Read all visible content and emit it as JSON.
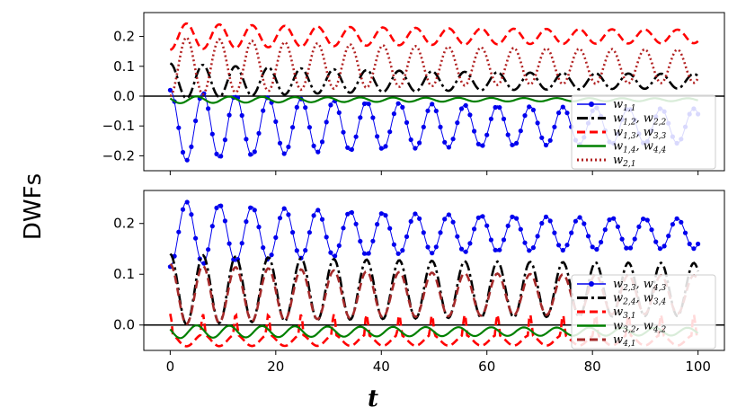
{
  "figure": {
    "ylabel": "DWFs",
    "xlabel": "t"
  },
  "chart_data": [
    {
      "type": "line",
      "panel": "top",
      "xlim": [
        -5,
        105
      ],
      "ylim": [
        -0.25,
        0.28
      ],
      "xticks": [
        0,
        20,
        40,
        60,
        80,
        100
      ],
      "xtick_labels": [
        "",
        "",
        "",
        "",
        "",
        ""
      ],
      "yticks": [
        -0.2,
        -0.1,
        0.0,
        0.1,
        0.2
      ],
      "ytick_labels": [
        "−0.2",
        "−0.1",
        "0.0",
        "0.1",
        "0.2"
      ],
      "hline": 0,
      "legend_position": "lower-right",
      "series": [
        {
          "name": "W1,1",
          "legend_label": "w",
          "legend_sub": "1,1",
          "color": "#0000ee",
          "style": "dot-marker",
          "model": {
            "offset": -0.1,
            "amp": 0.12,
            "amp_end": 0.05,
            "period": 6.2,
            "phase": 0
          }
        },
        {
          "name": "W1,2 W2,2",
          "legend_label": "w",
          "legend_sub": "1,2",
          "legend_label2": "w",
          "legend_sub2": "2,2",
          "color": "#000000",
          "style": "dashdot",
          "model": {
            "offset": 0.05,
            "amp": 0.06,
            "amp_end": 0.02,
            "period": 6.2,
            "phase": 0
          }
        },
        {
          "name": "W1,3 W3,3",
          "legend_label": "w",
          "legend_sub": "1,3",
          "legend_label2": "w",
          "legend_sub2": "3,3",
          "color": "#ff0000",
          "style": "dashed",
          "model": {
            "offset": 0.2,
            "amp": 0.045,
            "amp_end": 0.02,
            "period": 6.2,
            "phase": 3.14159
          }
        },
        {
          "name": "W1,4 W4,4",
          "legend_label": "w",
          "legend_sub": "1,4",
          "legend_label2": "w",
          "legend_sub2": "4,4",
          "color": "#008000",
          "style": "solid",
          "model": {
            "offset": -0.012,
            "amp": 0.012,
            "amp_end": 0.004,
            "period": 6.2,
            "phase": 1.2
          }
        },
        {
          "name": "W2,1",
          "legend_label": "w",
          "legend_sub": "2,1",
          "color": "#b22222",
          "style": "dotted",
          "model": {
            "offset": 0.1,
            "amp": 0.1,
            "amp_end": 0.05,
            "period": 6.2,
            "phase": 3.14159
          }
        }
      ]
    },
    {
      "type": "line",
      "panel": "bottom",
      "xlim": [
        -5,
        105
      ],
      "ylim": [
        -0.05,
        0.265
      ],
      "xticks": [
        0,
        20,
        40,
        60,
        80,
        100
      ],
      "xtick_labels": [
        "0",
        "20",
        "40",
        "60",
        "80",
        "100"
      ],
      "yticks": [
        0.0,
        0.1,
        0.2
      ],
      "ytick_labels": [
        "0.0",
        "0.1",
        "0.2"
      ],
      "hline": 0,
      "legend_position": "lower-right",
      "series": [
        {
          "name": "W2,3 W4,3",
          "legend_label": "w",
          "legend_sub": "2,3",
          "legend_label2": "w",
          "legend_sub2": "4,3",
          "color": "#0000ee",
          "style": "dot-marker",
          "model": {
            "offset": 0.18,
            "amp": 0.065,
            "amp_end": 0.025,
            "period": 6.2,
            "phase": 3.14159
          }
        },
        {
          "name": "W2,4 W3,4",
          "legend_label": "w",
          "legend_sub": "2,4",
          "legend_label2": "w",
          "legend_sub2": "3,4",
          "color": "#000000",
          "style": "dashdot",
          "model": {
            "offset": 0.07,
            "amp": 0.07,
            "amp_end": 0.05,
            "period": 6.2,
            "phase": 0
          }
        },
        {
          "name": "W3,1",
          "legend_label": "w",
          "legend_sub": "3,1",
          "color": "#ff0000",
          "style": "dashed",
          "model": {
            "offset": -0.03,
            "amp": 0.012,
            "amp_end": 0.01,
            "period": 6.2,
            "phase": 0,
            "spike": 0.04
          }
        },
        {
          "name": "W3,2 W4,2",
          "legend_label": "w",
          "legend_sub": "3,2",
          "legend_label2": "w",
          "legend_sub2": "4,2",
          "color": "#008000",
          "style": "solid",
          "model": {
            "offset": -0.013,
            "amp": 0.013,
            "amp_end": 0.007,
            "period": 6.2,
            "phase": 1.2
          }
        },
        {
          "name": "W4,1",
          "legend_label": "w",
          "legend_sub": "4,1",
          "color": "#a52a2a",
          "style": "dashed",
          "model": {
            "offset": 0.06,
            "amp": 0.06,
            "amp_end": 0.035,
            "period": 6.2,
            "phase": 0
          }
        }
      ]
    }
  ]
}
